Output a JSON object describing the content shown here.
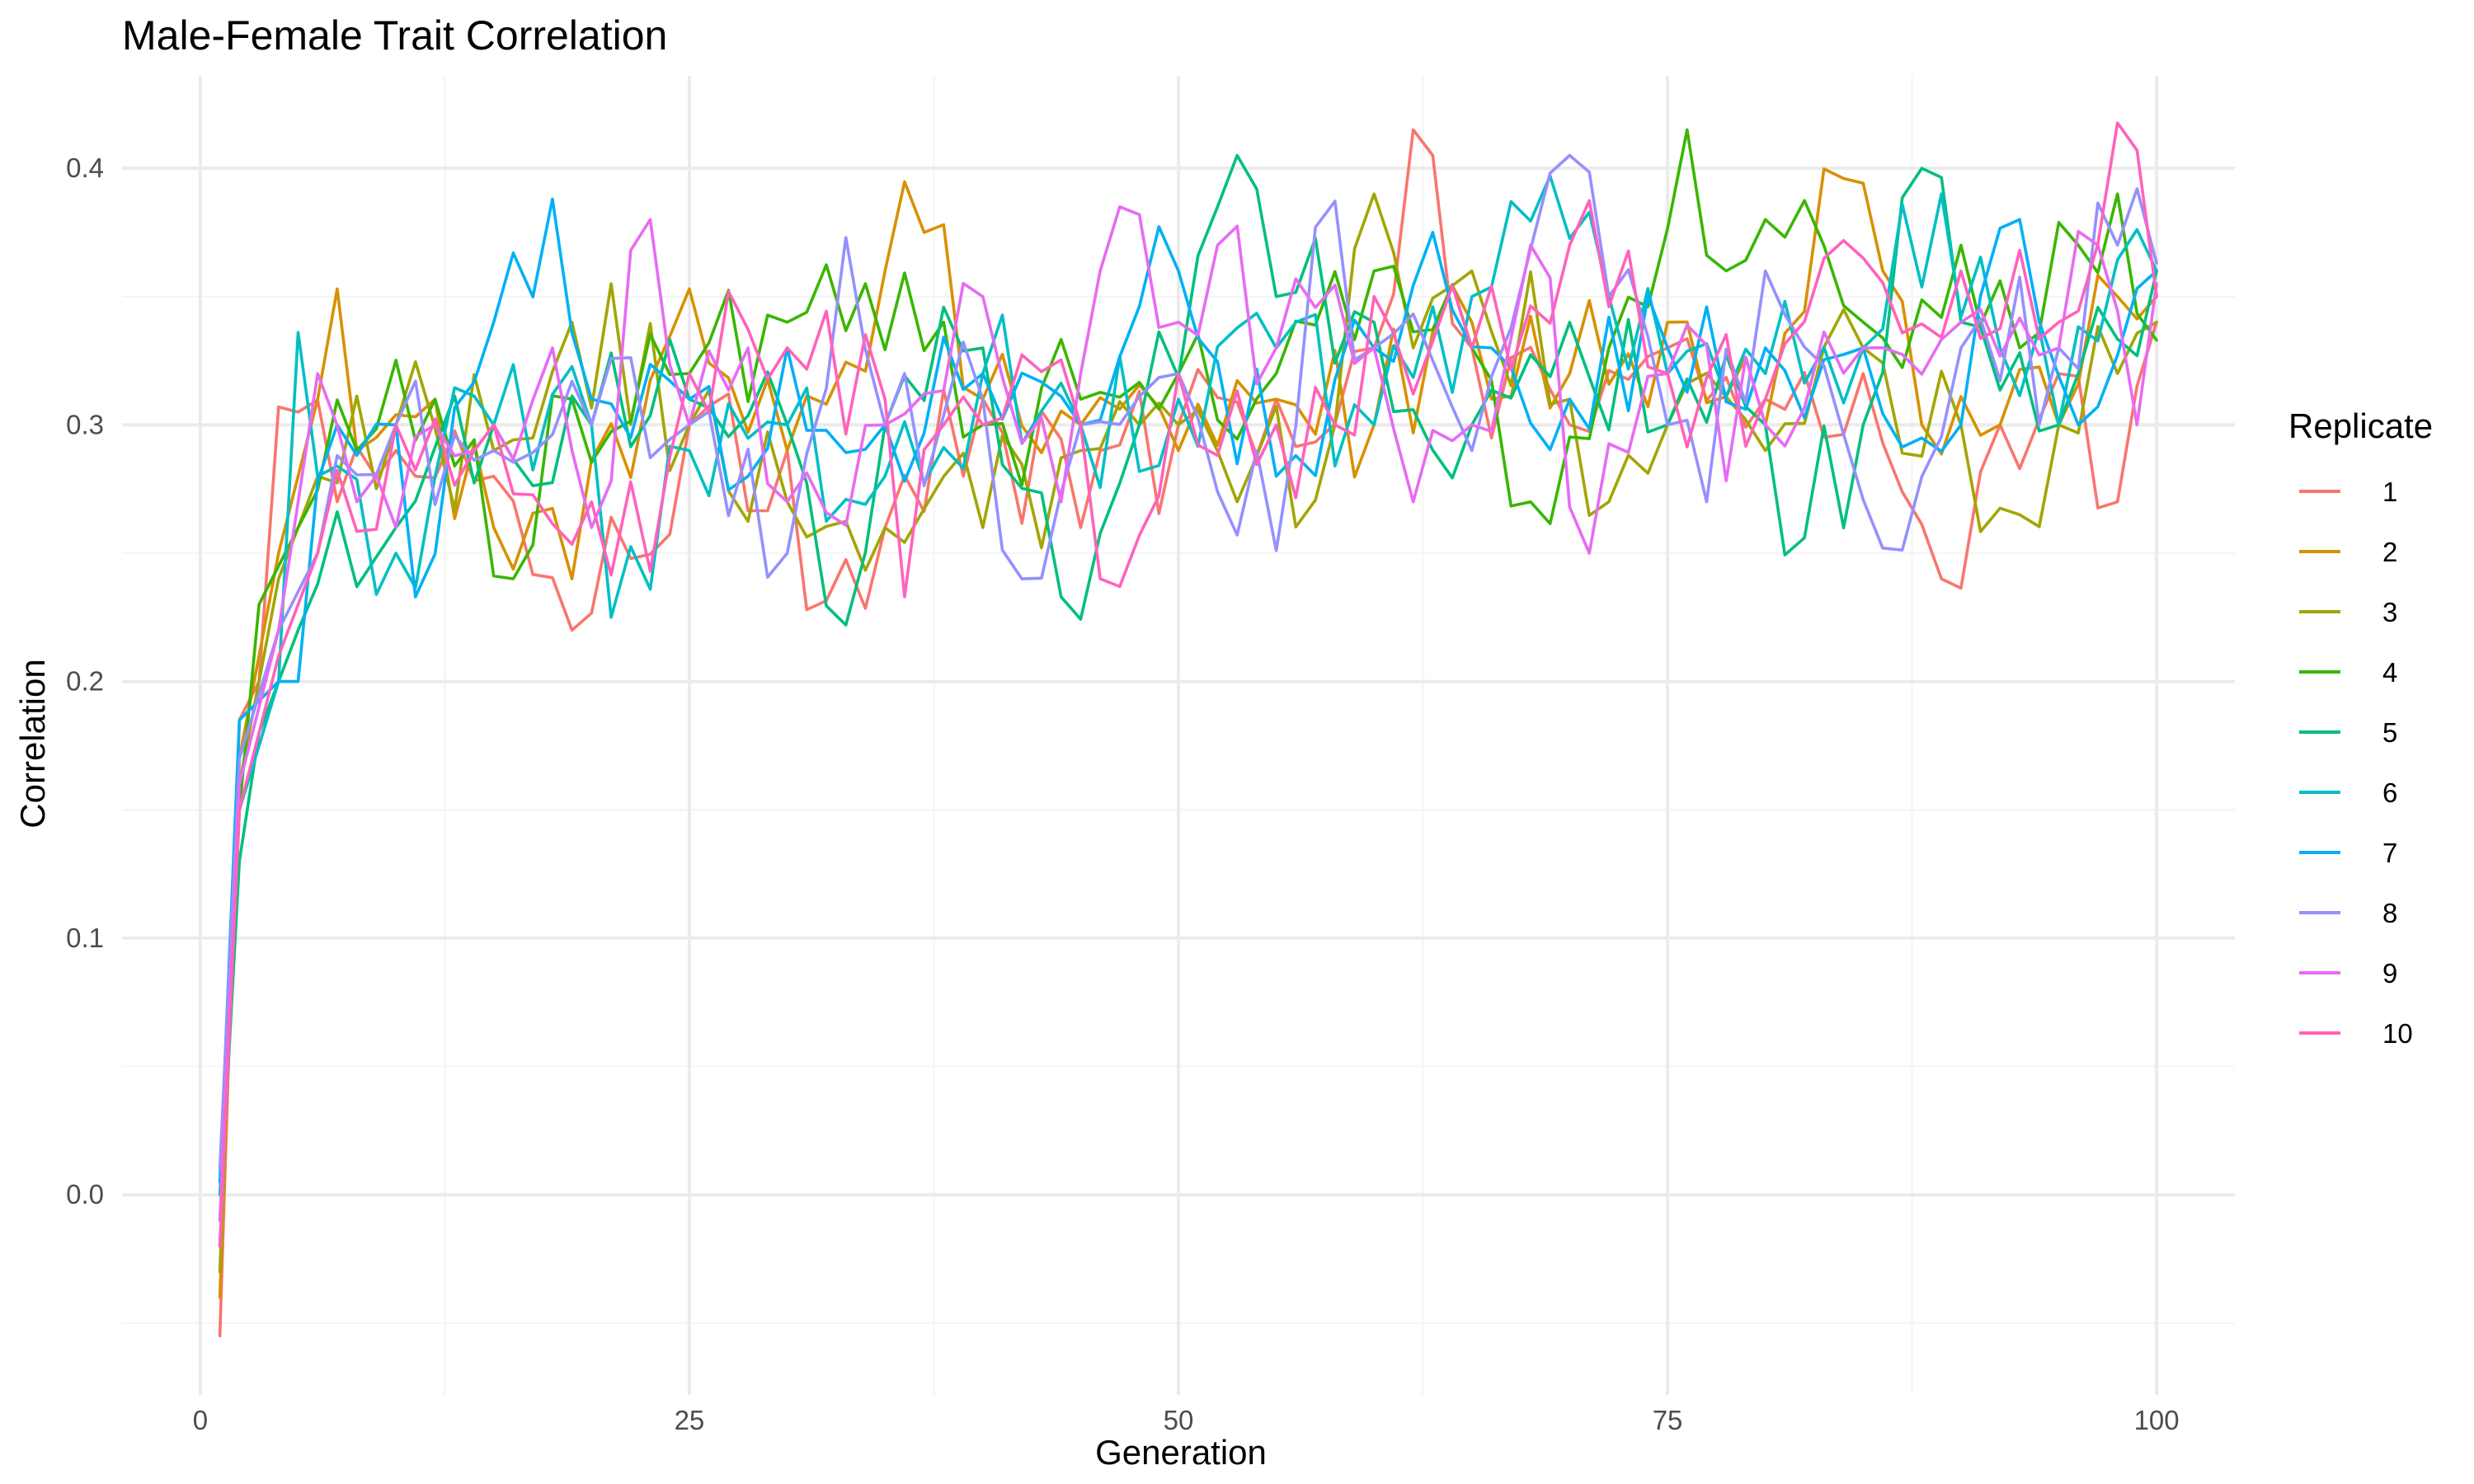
{
  "chart_data": {
    "type": "line",
    "title": "Male-Female Trait Correlation",
    "xlabel": "Generation",
    "ylabel": "Correlation",
    "xlim": [
      -4,
      104
    ],
    "ylim": [
      -0.078,
      0.436
    ],
    "x_ticks": [
      0,
      25,
      50,
      75,
      100
    ],
    "x_tick_labels": [
      "0",
      "25",
      "50",
      "75",
      "100"
    ],
    "y_ticks": [
      0.0,
      0.1,
      0.2,
      0.3,
      0.4
    ],
    "y_tick_labels": [
      "0.0",
      "0.1",
      "0.2",
      "0.3",
      "0.4"
    ],
    "grid": true,
    "legend": {
      "title": "Replicate",
      "position": "right"
    },
    "generations": {
      "start": 1,
      "end": 100
    },
    "series": [
      {
        "name": "1",
        "color": "#F8766D",
        "anchors": [
          [
            1,
            -0.055
          ],
          [
            2,
            0.185
          ],
          [
            3,
            0.2
          ],
          [
            4,
            0.307
          ],
          [
            5,
            0.305
          ],
          [
            7,
            0.27
          ],
          [
            10,
            0.29
          ],
          [
            15,
            0.28
          ],
          [
            19,
            0.22
          ],
          [
            25,
            0.3
          ],
          [
            30,
            0.29
          ],
          [
            31,
            0.228
          ],
          [
            40,
            0.31
          ],
          [
            45,
            0.26
          ],
          [
            50,
            0.3
          ],
          [
            55,
            0.31
          ],
          [
            60,
            0.33
          ],
          [
            62,
            0.415
          ],
          [
            63,
            0.405
          ],
          [
            65,
            0.33
          ],
          [
            70,
            0.3
          ],
          [
            75,
            0.33
          ],
          [
            80,
            0.31
          ],
          [
            85,
            0.32
          ],
          [
            89,
            0.24
          ],
          [
            92,
            0.3
          ],
          [
            95,
            0.32
          ],
          [
            98,
            0.27
          ],
          [
            100,
            0.34
          ]
        ]
      },
      {
        "name": "2",
        "color": "#D89000",
        "anchors": [
          [
            1,
            -0.04
          ],
          [
            2,
            0.17
          ],
          [
            4,
            0.25
          ],
          [
            6,
            0.31
          ],
          [
            7,
            0.353
          ],
          [
            8,
            0.29
          ],
          [
            12,
            0.31
          ],
          [
            15,
            0.26
          ],
          [
            19,
            0.24
          ],
          [
            25,
            0.353
          ],
          [
            30,
            0.29
          ],
          [
            35,
            0.36
          ],
          [
            37,
            0.375
          ],
          [
            38,
            0.378
          ],
          [
            40,
            0.31
          ],
          [
            45,
            0.3
          ],
          [
            50,
            0.29
          ],
          [
            55,
            0.31
          ],
          [
            60,
            0.3
          ],
          [
            65,
            0.34
          ],
          [
            70,
            0.32
          ],
          [
            75,
            0.34
          ],
          [
            80,
            0.3
          ],
          [
            84,
            0.396
          ],
          [
            88,
            0.3
          ],
          [
            92,
            0.3
          ],
          [
            95,
            0.3
          ],
          [
            98,
            0.35
          ],
          [
            100,
            0.35
          ]
        ]
      },
      {
        "name": "3",
        "color": "#A3A500",
        "anchors": [
          [
            1,
            -0.03
          ],
          [
            2,
            0.16
          ],
          [
            4,
            0.24
          ],
          [
            6,
            0.28
          ],
          [
            10,
            0.3
          ],
          [
            15,
            0.29
          ],
          [
            19,
            0.34
          ],
          [
            25,
            0.3
          ],
          [
            30,
            0.27
          ],
          [
            35,
            0.26
          ],
          [
            40,
            0.26
          ],
          [
            45,
            0.29
          ],
          [
            50,
            0.3
          ],
          [
            53,
            0.27
          ],
          [
            58,
            0.3
          ],
          [
            60,
            0.39
          ],
          [
            62,
            0.33
          ],
          [
            65,
            0.36
          ],
          [
            70,
            0.31
          ],
          [
            72,
            0.27
          ],
          [
            75,
            0.3
          ],
          [
            80,
            0.29
          ],
          [
            85,
            0.33
          ],
          [
            90,
            0.3
          ],
          [
            93,
            0.265
          ],
          [
            95,
            0.3
          ],
          [
            98,
            0.32
          ],
          [
            100,
            0.34
          ]
        ]
      },
      {
        "name": "4",
        "color": "#39B600",
        "anchors": [
          [
            1,
            -0.02
          ],
          [
            2,
            0.15
          ],
          [
            3,
            0.23
          ],
          [
            5,
            0.26
          ],
          [
            8,
            0.29
          ],
          [
            12,
            0.31
          ],
          [
            16,
            0.24
          ],
          [
            19,
            0.31
          ],
          [
            25,
            0.32
          ],
          [
            30,
            0.34
          ],
          [
            34,
            0.355
          ],
          [
            38,
            0.34
          ],
          [
            40,
            0.3
          ],
          [
            45,
            0.31
          ],
          [
            50,
            0.32
          ],
          [
            55,
            0.32
          ],
          [
            60,
            0.36
          ],
          [
            65,
            0.33
          ],
          [
            68,
            0.27
          ],
          [
            72,
            0.33
          ],
          [
            76,
            0.415
          ],
          [
            78,
            0.36
          ],
          [
            80,
            0.38
          ],
          [
            85,
            0.34
          ],
          [
            90,
            0.37
          ],
          [
            93,
            0.33
          ],
          [
            96,
            0.37
          ],
          [
            98,
            0.39
          ],
          [
            100,
            0.333
          ]
        ]
      },
      {
        "name": "5",
        "color": "#00BF7D",
        "anchors": [
          [
            1,
            -0.01
          ],
          [
            2,
            0.13
          ],
          [
            3,
            0.18
          ],
          [
            5,
            0.22
          ],
          [
            6,
            0.238
          ],
          [
            8,
            0.237
          ],
          [
            10,
            0.26
          ],
          [
            15,
            0.3
          ],
          [
            20,
            0.3
          ],
          [
            25,
            0.31
          ],
          [
            30,
            0.3
          ],
          [
            33,
            0.222
          ],
          [
            35,
            0.3
          ],
          [
            40,
            0.33
          ],
          [
            44,
            0.233
          ],
          [
            48,
            0.3
          ],
          [
            53,
            0.405
          ],
          [
            55,
            0.35
          ],
          [
            60,
            0.34
          ],
          [
            65,
            0.3
          ],
          [
            70,
            0.34
          ],
          [
            75,
            0.3
          ],
          [
            80,
            0.3
          ],
          [
            82,
            0.256
          ],
          [
            85,
            0.3
          ],
          [
            88,
            0.4
          ],
          [
            90,
            0.34
          ],
          [
            95,
            0.3
          ],
          [
            100,
            0.36
          ]
        ]
      },
      {
        "name": "6",
        "color": "#00BFC4",
        "anchors": [
          [
            1,
            0.0
          ],
          [
            2,
            0.15
          ],
          [
            4,
            0.2
          ],
          [
            5,
            0.336
          ],
          [
            6,
            0.28
          ],
          [
            10,
            0.25
          ],
          [
            12,
            0.28
          ],
          [
            15,
            0.3
          ],
          [
            20,
            0.3
          ],
          [
            21,
            0.225
          ],
          [
            25,
            0.29
          ],
          [
            30,
            0.3
          ],
          [
            35,
            0.28
          ],
          [
            40,
            0.32
          ],
          [
            45,
            0.3
          ],
          [
            50,
            0.31
          ],
          [
            55,
            0.33
          ],
          [
            60,
            0.3
          ],
          [
            65,
            0.35
          ],
          [
            67,
            0.387
          ],
          [
            69,
            0.397
          ],
          [
            72,
            0.35
          ],
          [
            75,
            0.32
          ],
          [
            80,
            0.32
          ],
          [
            85,
            0.33
          ],
          [
            89,
            0.39
          ],
          [
            92,
            0.33
          ],
          [
            95,
            0.3
          ],
          [
            100,
            0.36
          ]
        ]
      },
      {
        "name": "7",
        "color": "#00B0F6",
        "anchors": [
          [
            1,
            0.005
          ],
          [
            2,
            0.185
          ],
          [
            4,
            0.2
          ],
          [
            5,
            0.2
          ],
          [
            7,
            0.3
          ],
          [
            10,
            0.3
          ],
          [
            11,
            0.233
          ],
          [
            15,
            0.34
          ],
          [
            18,
            0.388
          ],
          [
            20,
            0.31
          ],
          [
            25,
            0.31
          ],
          [
            28,
            0.28
          ],
          [
            30,
            0.33
          ],
          [
            35,
            0.3
          ],
          [
            40,
            0.32
          ],
          [
            45,
            0.3
          ],
          [
            50,
            0.36
          ],
          [
            55,
            0.28
          ],
          [
            60,
            0.33
          ],
          [
            63,
            0.375
          ],
          [
            66,
            0.33
          ],
          [
            70,
            0.31
          ],
          [
            75,
            0.33
          ],
          [
            80,
            0.33
          ],
          [
            85,
            0.33
          ],
          [
            90,
            0.3
          ],
          [
            93,
            0.38
          ],
          [
            96,
            0.3
          ],
          [
            100,
            0.36
          ]
        ]
      },
      {
        "name": "8",
        "color": "#9590FF",
        "anchors": [
          [
            1,
            0.01
          ],
          [
            2,
            0.17
          ],
          [
            4,
            0.22
          ],
          [
            6,
            0.25
          ],
          [
            10,
            0.3
          ],
          [
            15,
            0.29
          ],
          [
            20,
            0.3
          ],
          [
            25,
            0.3
          ],
          [
            30,
            0.25
          ],
          [
            33,
            0.373
          ],
          [
            35,
            0.3
          ],
          [
            40,
            0.31
          ],
          [
            42,
            0.24
          ],
          [
            45,
            0.3
          ],
          [
            50,
            0.32
          ],
          [
            55,
            0.251
          ],
          [
            57,
            0.377
          ],
          [
            60,
            0.33
          ],
          [
            65,
            0.29
          ],
          [
            70,
            0.405
          ],
          [
            72,
            0.35
          ],
          [
            75,
            0.3
          ],
          [
            77,
            0.27
          ],
          [
            80,
            0.36
          ],
          [
            86,
            0.252
          ],
          [
            90,
            0.33
          ],
          [
            95,
            0.33
          ],
          [
            98,
            0.37
          ],
          [
            100,
            0.363
          ]
        ]
      },
      {
        "name": "9",
        "color": "#E76BF3",
        "anchors": [
          [
            1,
            -0.01
          ],
          [
            2,
            0.16
          ],
          [
            4,
            0.22
          ],
          [
            6,
            0.32
          ],
          [
            8,
            0.27
          ],
          [
            12,
            0.3
          ],
          [
            15,
            0.3
          ],
          [
            18,
            0.33
          ],
          [
            20,
            0.26
          ],
          [
            23,
            0.38
          ],
          [
            25,
            0.3
          ],
          [
            28,
            0.33
          ],
          [
            30,
            0.27
          ],
          [
            35,
            0.3
          ],
          [
            40,
            0.35
          ],
          [
            44,
            0.27
          ],
          [
            47,
            0.385
          ],
          [
            50,
            0.34
          ],
          [
            52,
            0.37
          ],
          [
            55,
            0.33
          ],
          [
            60,
            0.33
          ],
          [
            62,
            0.27
          ],
          [
            65,
            0.3
          ],
          [
            68,
            0.37
          ],
          [
            71,
            0.25
          ],
          [
            75,
            0.32
          ],
          [
            80,
            0.3
          ],
          [
            85,
            0.33
          ],
          [
            90,
            0.34
          ],
          [
            95,
            0.33
          ],
          [
            97,
            0.37
          ],
          [
            99,
            0.3
          ],
          [
            100,
            0.355
          ]
        ]
      },
      {
        "name": "10",
        "color": "#FF62BC",
        "anchors": [
          [
            1,
            -0.02
          ],
          [
            2,
            0.15
          ],
          [
            4,
            0.21
          ],
          [
            6,
            0.25
          ],
          [
            10,
            0.3
          ],
          [
            15,
            0.3
          ],
          [
            20,
            0.27
          ],
          [
            23,
            0.243
          ],
          [
            25,
            0.32
          ],
          [
            30,
            0.33
          ],
          [
            35,
            0.31
          ],
          [
            36,
            0.233
          ],
          [
            38,
            0.3
          ],
          [
            40,
            0.3
          ],
          [
            45,
            0.3
          ],
          [
            47,
            0.237
          ],
          [
            50,
            0.32
          ],
          [
            55,
            0.3
          ],
          [
            58,
            0.3
          ],
          [
            60,
            0.35
          ],
          [
            65,
            0.33
          ],
          [
            70,
            0.37
          ],
          [
            75,
            0.32
          ],
          [
            80,
            0.31
          ],
          [
            85,
            0.365
          ],
          [
            90,
            0.36
          ],
          [
            95,
            0.34
          ],
          [
            99,
            0.407
          ],
          [
            100,
            0.35
          ]
        ]
      }
    ]
  }
}
